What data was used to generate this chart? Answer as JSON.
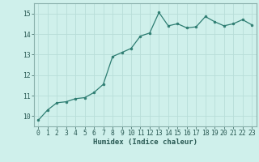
{
  "x": [
    0,
    1,
    2,
    3,
    4,
    5,
    6,
    7,
    8,
    9,
    10,
    11,
    12,
    13,
    14,
    15,
    16,
    17,
    18,
    19,
    20,
    21,
    22,
    23
  ],
  "y": [
    9.8,
    10.3,
    10.65,
    10.7,
    10.85,
    10.9,
    11.15,
    11.55,
    12.9,
    13.1,
    13.3,
    13.9,
    14.05,
    15.05,
    14.4,
    14.5,
    14.3,
    14.35,
    14.85,
    14.6,
    14.4,
    14.5,
    14.7,
    14.45
  ],
  "xlabel": "Humidex (Indice chaleur)",
  "xlim": [
    -0.5,
    23.5
  ],
  "ylim": [
    9.5,
    15.5
  ],
  "yticks": [
    10,
    11,
    12,
    13,
    14,
    15
  ],
  "xticks": [
    0,
    1,
    2,
    3,
    4,
    5,
    6,
    7,
    8,
    9,
    10,
    11,
    12,
    13,
    14,
    15,
    16,
    17,
    18,
    19,
    20,
    21,
    22,
    23
  ],
  "line_color": "#2e7d72",
  "marker_size": 2.0,
  "bg_color": "#cff0eb",
  "grid_color": "#b8ddd8",
  "axis_color": "#8ab0ac",
  "font_color": "#2a5a54",
  "xlabel_fontsize": 6.5,
  "tick_fontsize": 5.8
}
